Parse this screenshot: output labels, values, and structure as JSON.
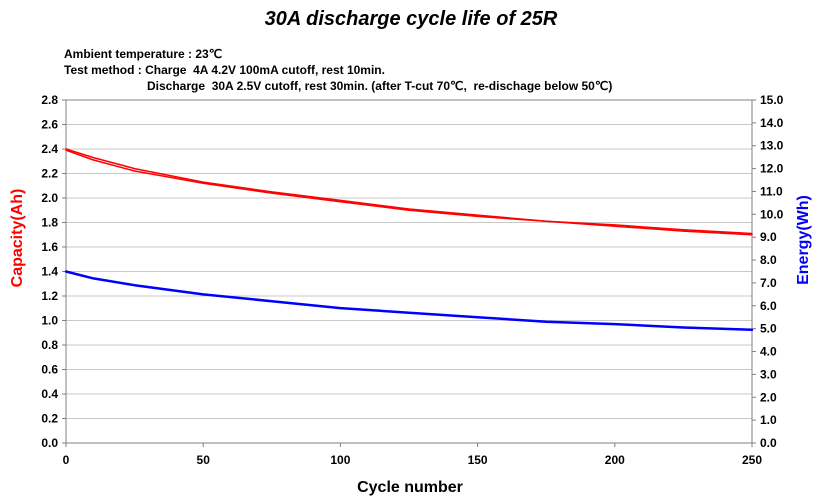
{
  "chart_data": {
    "type": "line",
    "title": "30A discharge cycle life of 25R",
    "notes": [
      "Ambient temperature : 23℃",
      "Test method : Charge  4A 4.2V 100mA cutoff, rest 10min.",
      "Discharge  30A 2.5V cutoff, rest 30min. (after T-cut 70℃,  re-dischage below 50℃)"
    ],
    "xlabel": "Cycle number",
    "ylabel_left": "Capacity(Ah)",
    "ylabel_right": "Energy(Wh)",
    "xlim": [
      0,
      250
    ],
    "ylim_left": [
      0.0,
      2.8
    ],
    "ylim_right": [
      0.0,
      15.0
    ],
    "x_ticks": [
      "0",
      "50",
      "100",
      "150",
      "200",
      "250"
    ],
    "y_ticks_left": [
      "0.0",
      "0.2",
      "0.4",
      "0.6",
      "0.8",
      "1.0",
      "1.2",
      "1.4",
      "1.6",
      "1.8",
      "2.0",
      "2.2",
      "2.4",
      "2.6",
      "2.8"
    ],
    "y_ticks_right": [
      "0.0",
      "1.0",
      "2.0",
      "3.0",
      "4.0",
      "5.0",
      "6.0",
      "7.0",
      "8.0",
      "9.0",
      "10.0",
      "11.0",
      "12.0",
      "13.0",
      "14.0",
      "15.0"
    ],
    "grid": true,
    "colors": {
      "capacity": "#ff0000",
      "energy": "#0000ff",
      "grid": "#c8c8c8",
      "axis": "#808080"
    },
    "series": [
      {
        "axis": "left",
        "color": "#ff0000",
        "x": [
          0,
          10,
          25,
          50,
          75,
          100,
          125,
          150,
          175,
          200,
          225,
          250
        ],
        "values": [
          2.4,
          2.33,
          2.24,
          2.13,
          2.05,
          1.98,
          1.91,
          1.86,
          1.81,
          1.78,
          1.74,
          1.71
        ]
      },
      {
        "axis": "left",
        "color": "#ff0000",
        "x": [
          0,
          10,
          25,
          50,
          75,
          100,
          125,
          150,
          175,
          200,
          225,
          250
        ],
        "values": [
          2.39,
          2.31,
          2.22,
          2.12,
          2.04,
          1.97,
          1.9,
          1.85,
          1.81,
          1.77,
          1.73,
          1.7
        ]
      },
      {
        "axis": "right",
        "color": "#0000ff",
        "x": [
          0,
          10,
          25,
          50,
          75,
          100,
          125,
          150,
          175,
          200,
          225,
          250
        ],
        "values": [
          7.5,
          7.2,
          6.9,
          6.5,
          6.2,
          5.9,
          5.7,
          5.5,
          5.3,
          5.2,
          5.05,
          4.95
        ]
      }
    ]
  }
}
